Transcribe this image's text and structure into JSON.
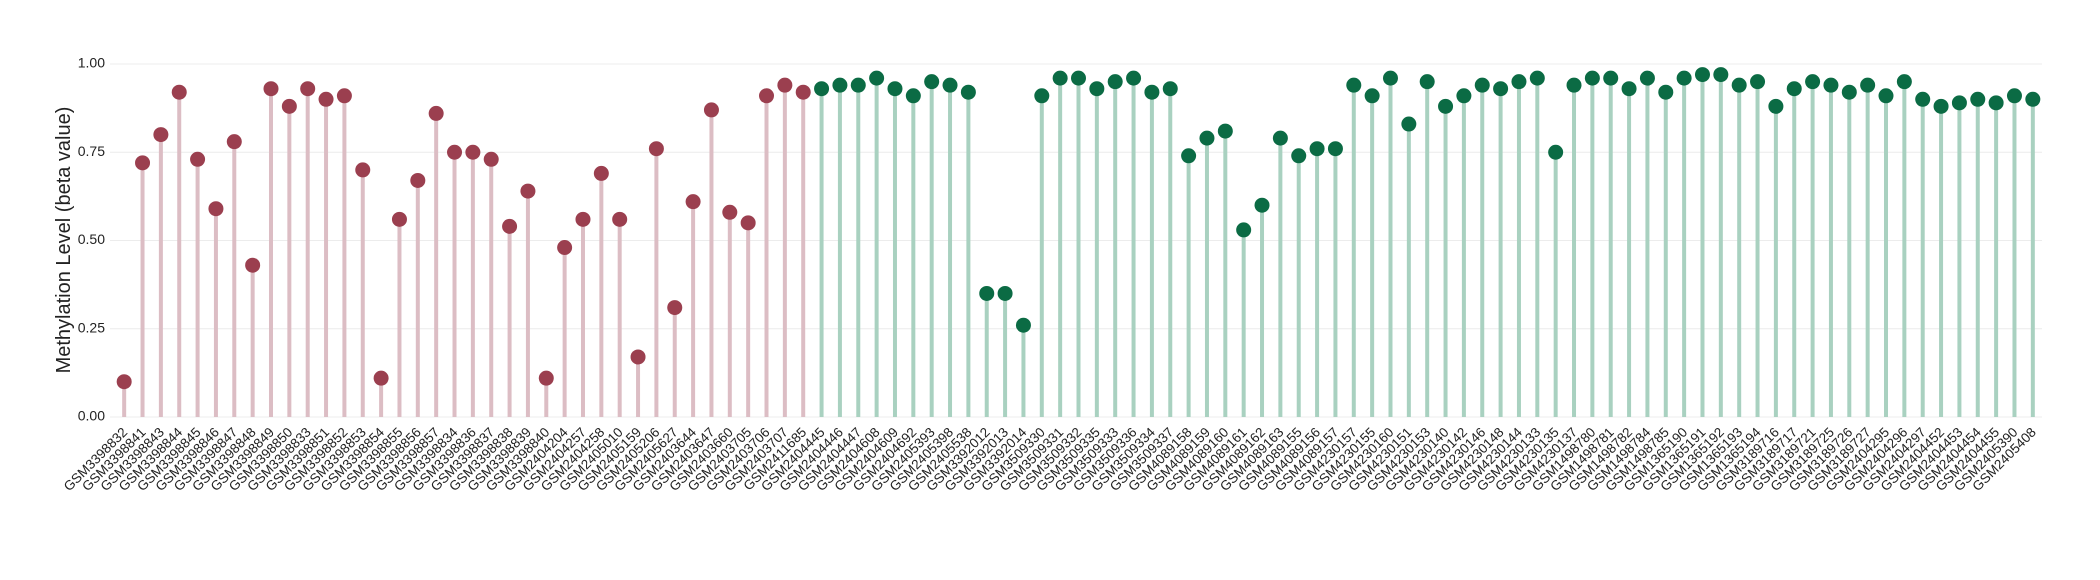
{
  "chart_data": {
    "type": "lollipop",
    "y_label": "Methylation Level (beta value)",
    "categories": [
      "GSM3398832",
      "GSM3398841",
      "GSM3398843",
      "GSM3398844",
      "GSM3398845",
      "GSM3398846",
      "GSM3398847",
      "GSM3398848",
      "GSM3398849",
      "GSM3398850",
      "GSM3398833",
      "GSM3398851",
      "GSM3398852",
      "GSM3398853",
      "GSM3398854",
      "GSM3398855",
      "GSM3398856",
      "GSM3398857",
      "GSM3398834",
      "GSM3398836",
      "GSM3398837",
      "GSM3398838",
      "GSM3398839",
      "GSM3398840",
      "GSM2404204",
      "GSM2404257",
      "GSM2404258",
      "GSM2405010",
      "GSM2405159",
      "GSM2405206",
      "GSM2405627",
      "GSM2403644",
      "GSM2403647",
      "GSM2403660",
      "GSM2403705",
      "GSM2403706",
      "GSM2403707",
      "GSM2411685",
      "GSM2404445",
      "GSM2404446",
      "GSM2404447",
      "GSM2404608",
      "GSM2404609",
      "GSM2404692",
      "GSM2405393",
      "GSM2405398",
      "GSM2405538",
      "GSM3392012",
      "GSM3392013",
      "GSM3392014",
      "GSM3509330",
      "GSM3509331",
      "GSM3509332",
      "GSM3509335",
      "GSM3509333",
      "GSM3509336",
      "GSM3509334",
      "GSM3509337",
      "GSM4089158",
      "GSM4089159",
      "GSM4089160",
      "GSM4089161",
      "GSM4089162",
      "GSM4089163",
      "GSM4089155",
      "GSM4089156",
      "GSM4089157",
      "GSM4230157",
      "GSM4230155",
      "GSM4230160",
      "GSM4230151",
      "GSM4230153",
      "GSM4230140",
      "GSM4230142",
      "GSM4230146",
      "GSM4230148",
      "GSM4230144",
      "GSM4230133",
      "GSM4230135",
      "GSM4230137",
      "GSM1498780",
      "GSM1498781",
      "GSM1498782",
      "GSM1498784",
      "GSM1498785",
      "GSM1365190",
      "GSM1365191",
      "GSM1365192",
      "GSM1365193",
      "GSM1365194",
      "GSM3189716",
      "GSM3189717",
      "GSM3189721",
      "GSM3189725",
      "GSM3189726",
      "GSM3189727",
      "GSM2404295",
      "GSM2404296",
      "GSM2404297",
      "GSM2404452",
      "GSM2404453",
      "GSM2404454",
      "GSM2404455",
      "GSM2405390",
      "GSM2405408"
    ],
    "series": [
      {
        "color": "#9b3f4f",
        "stem_color": "#dcbdc4",
        "values": [
          0.1,
          0.72,
          0.8,
          0.92,
          0.73,
          0.59,
          0.78,
          0.43,
          0.93,
          0.88,
          0.93,
          0.9,
          0.91,
          0.7,
          0.11,
          0.56,
          0.67,
          0.86,
          0.75,
          0.75,
          0.73,
          0.54,
          0.64,
          0.11,
          0.48,
          0.56,
          0.69,
          0.56,
          0.17,
          0.76,
          0.31,
          0.61,
          0.87,
          0.58,
          0.55,
          0.91,
          0.94,
          0.92,
          null,
          null,
          null,
          null,
          null,
          null,
          null,
          null,
          null,
          null,
          null,
          null,
          null,
          null,
          null,
          null,
          null,
          null,
          null,
          null,
          null,
          null,
          null,
          null,
          null,
          null,
          null,
          null,
          null,
          null,
          null,
          null,
          null,
          null,
          null,
          null,
          null,
          null,
          null,
          null,
          null,
          null,
          null,
          null,
          null,
          null,
          null,
          null,
          null,
          null,
          null,
          null,
          null,
          null,
          null,
          null,
          null,
          null,
          null,
          null,
          null,
          null,
          null,
          null,
          null,
          null,
          null
        ]
      },
      {
        "color": "#0b6b44",
        "stem_color": "#a9d1c0",
        "values": [
          null,
          null,
          null,
          null,
          null,
          null,
          null,
          null,
          null,
          null,
          null,
          null,
          null,
          null,
          null,
          null,
          null,
          null,
          null,
          null,
          null,
          null,
          null,
          null,
          null,
          null,
          null,
          null,
          null,
          null,
          null,
          null,
          null,
          null,
          null,
          null,
          null,
          null,
          0.93,
          0.94,
          0.94,
          0.96,
          0.93,
          0.91,
          0.95,
          0.94,
          0.92,
          0.35,
          0.35,
          0.26,
          0.91,
          0.96,
          0.96,
          0.93,
          0.95,
          0.96,
          0.92,
          0.93,
          0.74,
          0.79,
          0.81,
          0.53,
          0.6,
          0.79,
          0.74,
          0.76,
          0.76,
          0.94,
          0.91,
          0.96,
          0.83,
          0.95,
          0.88,
          0.91,
          0.94,
          0.93,
          0.95,
          0.96,
          0.75,
          0.94,
          0.96,
          0.96,
          0.93,
          0.96,
          0.92,
          0.96,
          0.97,
          0.97,
          0.94,
          0.95,
          0.88,
          0.93,
          0.95,
          0.94,
          0.92,
          0.94,
          0.91,
          0.95,
          0.9,
          0.88,
          0.89,
          0.9,
          0.89,
          0.91,
          0.9
        ]
      }
    ],
    "ylim": [
      0,
      1.0
    ],
    "yticks": [
      {
        "value": 0,
        "label": "0.00"
      },
      {
        "value": 0.25,
        "label": "0.25"
      },
      {
        "value": 0.5,
        "label": "0.50"
      },
      {
        "value": 0.75,
        "label": "0.75"
      },
      {
        "value": 1.0,
        "label": "1.00"
      }
    ],
    "grid": true
  }
}
